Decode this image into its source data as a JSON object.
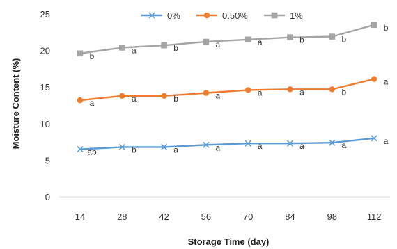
{
  "chart_data": {
    "type": "line",
    "xlabel": "Storage Time (day)",
    "ylabel": "Moisture Content (%)",
    "x": [
      14,
      28,
      42,
      56,
      70,
      84,
      98,
      112
    ],
    "yticks": [
      0,
      5,
      10,
      15,
      20,
      25
    ],
    "ylim": [
      0,
      25
    ],
    "grid": false,
    "legend_position": "top",
    "series": [
      {
        "name": "0%",
        "color": "#5b9bd5",
        "marker": "x",
        "values": [
          6.5,
          6.8,
          6.8,
          7.1,
          7.3,
          7.3,
          7.4,
          8.0
        ],
        "labels": [
          "ab",
          "b",
          "a",
          "a",
          "a",
          "a",
          "a",
          "a"
        ]
      },
      {
        "name": "0.50%",
        "color": "#ed7d31",
        "marker": "circle",
        "values": [
          13.2,
          13.8,
          13.8,
          14.2,
          14.6,
          14.7,
          14.7,
          16.1
        ],
        "labels": [
          "a",
          "a",
          "b",
          "a",
          "a",
          "a",
          "b",
          "a"
        ]
      },
      {
        "name": "1%",
        "color": "#a5a5a5",
        "marker": "square",
        "values": [
          19.6,
          20.4,
          20.7,
          21.2,
          21.5,
          21.8,
          21.9,
          23.5
        ],
        "labels": [
          "b",
          "a",
          "b",
          "a",
          "a",
          "b",
          "b",
          "b"
        ]
      }
    ]
  }
}
